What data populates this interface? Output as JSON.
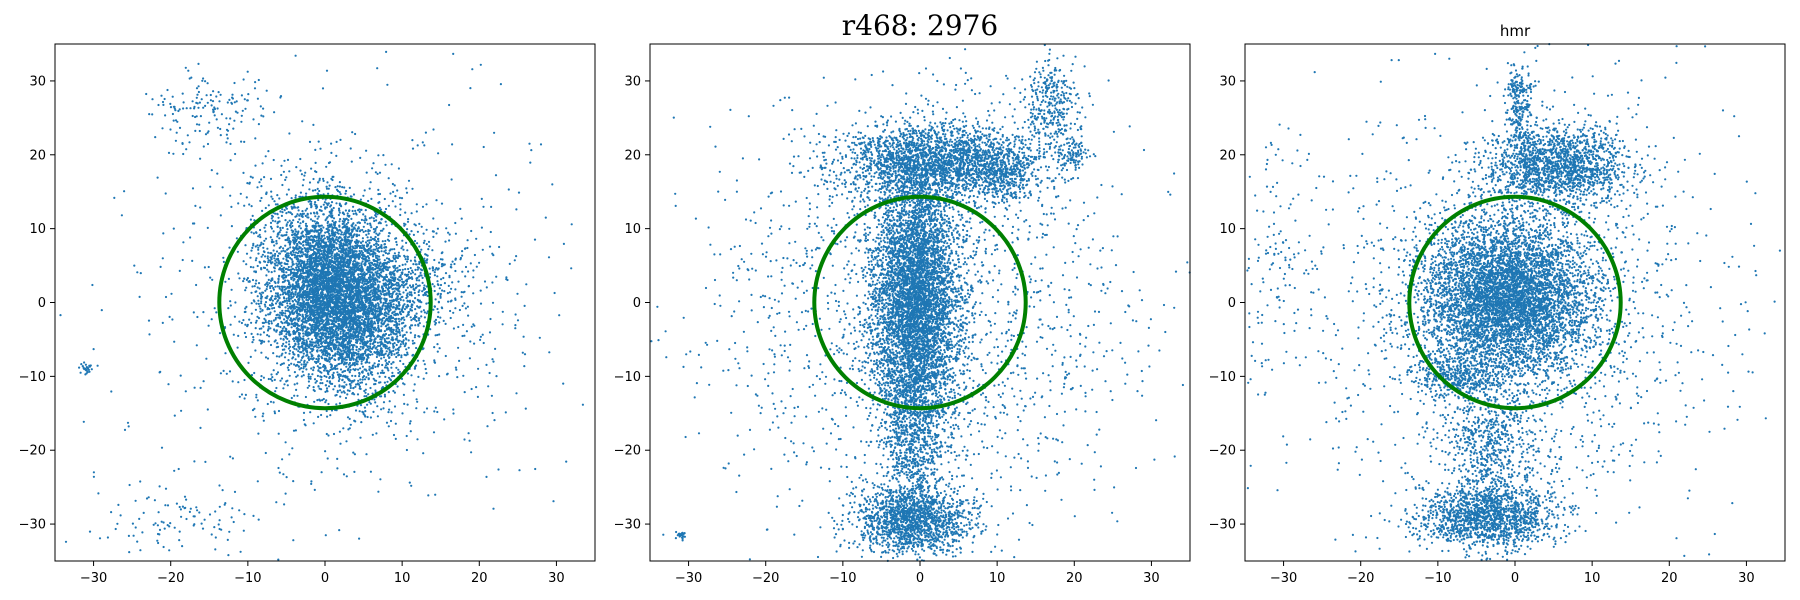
{
  "figure": {
    "suptitle": "r468: 2976"
  },
  "chart_data": [
    {
      "type": "scatter",
      "title": "",
      "xlabel": "",
      "ylabel": "",
      "xlim": [
        -35,
        35
      ],
      "ylim": [
        -35,
        35
      ],
      "xticks": [
        -30,
        -20,
        -10,
        0,
        10,
        20,
        30
      ],
      "yticks": [
        -30,
        -20,
        -10,
        0,
        10,
        20,
        30
      ],
      "grid": false,
      "point_color": "#1f77b4",
      "circle": {
        "center": [
          0,
          0
        ],
        "radius": 13.7,
        "color": "#008000"
      },
      "clusters": [
        {
          "center": [
            1.5,
            1.0
          ],
          "spread": [
            4.5,
            6.0
          ],
          "tilt": 0.25,
          "count": 6500
        },
        {
          "center": [
            12.0,
            3.0
          ],
          "spread": [
            4.0,
            3.0
          ],
          "tilt": 0.0,
          "count": 260
        },
        {
          "center": [
            -15.0,
            26.0
          ],
          "spread": [
            4.0,
            2.5
          ],
          "tilt": 0.0,
          "count": 150
        },
        {
          "center": [
            -19.0,
            -30.0
          ],
          "spread": [
            6.0,
            3.0
          ],
          "tilt": 0.0,
          "count": 110
        },
        {
          "center": [
            -31.0,
            -9.0
          ],
          "spread": [
            0.35,
            0.35
          ],
          "tilt": 0.0,
          "count": 25
        },
        {
          "center": [
            3.0,
            0.0
          ],
          "spread": [
            13.0,
            13.0
          ],
          "tilt": 0.0,
          "count": 900
        }
      ]
    },
    {
      "type": "scatter",
      "title": "",
      "xlabel": "",
      "ylabel": "",
      "xlim": [
        -35,
        35
      ],
      "ylim": [
        -35,
        35
      ],
      "xticks": [
        -30,
        -20,
        -10,
        0,
        10,
        20,
        30
      ],
      "yticks": [
        -30,
        -20,
        -10,
        0,
        10,
        20,
        30
      ],
      "grid": false,
      "point_color": "#1f77b4",
      "circle": {
        "center": [
          0,
          0
        ],
        "radius": 13.7,
        "color": "#008000"
      },
      "clusters": [
        {
          "center": [
            -0.5,
            0.0
          ],
          "spread": [
            2.8,
            9.0
          ],
          "tilt": 0.0,
          "count": 5500
        },
        {
          "center": [
            2.0,
            19.0
          ],
          "spread": [
            6.5,
            2.6
          ],
          "tilt": 0.0,
          "count": 2200
        },
        {
          "center": [
            11.0,
            17.5
          ],
          "spread": [
            2.0,
            1.8
          ],
          "tilt": 0.0,
          "count": 350
        },
        {
          "center": [
            17.0,
            26.0
          ],
          "spread": [
            2.0,
            3.5
          ],
          "tilt": 0.0,
          "count": 350
        },
        {
          "center": [
            -1.0,
            -29.5
          ],
          "spread": [
            3.8,
            2.2
          ],
          "tilt": 0.0,
          "count": 1500
        },
        {
          "center": [
            -1.0,
            -19.0
          ],
          "spread": [
            1.8,
            5.0
          ],
          "tilt": 0.0,
          "count": 550
        },
        {
          "center": [
            20.0,
            20.0
          ],
          "spread": [
            1.2,
            1.0
          ],
          "tilt": 0.0,
          "count": 80
        },
        {
          "center": [
            -31.0,
            -31.5
          ],
          "spread": [
            0.35,
            0.3
          ],
          "tilt": 0.0,
          "count": 25
        },
        {
          "center": [
            0.0,
            -2.0
          ],
          "spread": [
            14.0,
            14.0
          ],
          "tilt": 0.0,
          "count": 1800
        }
      ]
    },
    {
      "type": "scatter",
      "title": "hmr",
      "xlabel": "",
      "ylabel": "",
      "xlim": [
        -35,
        35
      ],
      "ylim": [
        -35,
        35
      ],
      "xticks": [
        -30,
        -20,
        -10,
        0,
        10,
        20,
        30
      ],
      "yticks": [
        -30,
        -20,
        -10,
        0,
        10,
        20,
        30
      ],
      "grid": false,
      "point_color": "#1f77b4",
      "circle": {
        "center": [
          0,
          0
        ],
        "radius": 13.7,
        "color": "#008000"
      },
      "clusters": [
        {
          "center": [
            -1.0,
            0.5
          ],
          "spread": [
            5.5,
            5.5
          ],
          "tilt": 0.0,
          "count": 5500
        },
        {
          "center": [
            5.5,
            18.5
          ],
          "spread": [
            4.5,
            2.6
          ],
          "tilt": 0.0,
          "count": 1600
        },
        {
          "center": [
            0.5,
            27.0
          ],
          "spread": [
            0.9,
            3.0
          ],
          "tilt": 0.0,
          "count": 250
        },
        {
          "center": [
            -3.5,
            -29.0
          ],
          "spread": [
            4.5,
            2.2
          ],
          "tilt": 0.0,
          "count": 1500
        },
        {
          "center": [
            -3.0,
            -19.0
          ],
          "spread": [
            3.0,
            4.5
          ],
          "tilt": 0.0,
          "count": 600
        },
        {
          "center": [
            -8.0,
            -10.0
          ],
          "spread": [
            2.5,
            1.5
          ],
          "tilt": 0.0,
          "count": 300
        },
        {
          "center": [
            0.0,
            0.0
          ],
          "spread": [
            14.0,
            14.0
          ],
          "tilt": 0.0,
          "count": 1600
        },
        {
          "center": [
            -31.0,
            5.0
          ],
          "spread": [
            3.0,
            10.0
          ],
          "tilt": 0.0,
          "count": 120
        }
      ]
    }
  ]
}
